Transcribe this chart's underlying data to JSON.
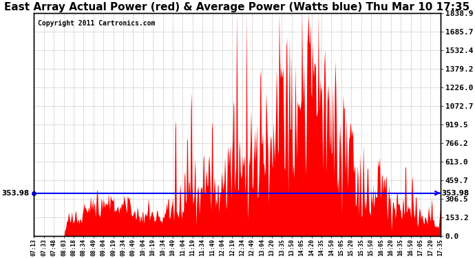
{
  "title": "East Array Actual Power (red) & Average Power (Watts blue) Thu Mar 10 17:35",
  "copyright_text": "Copyright 2011 Cartronics.com",
  "avg_power": 353.98,
  "y_ticks": [
    0.0,
    153.2,
    306.5,
    459.7,
    613.0,
    766.2,
    919.5,
    1072.7,
    1226.0,
    1379.2,
    1532.4,
    1685.7,
    1838.9
  ],
  "y_max": 1838.9,
  "y_min": 0.0,
  "background_color": "#ffffff",
  "grid_color": "#aaaaaa",
  "title_fontsize": 11,
  "avg_line_color": "blue",
  "fill_color": "red",
  "x_tick_labels": [
    "07:13",
    "07:33",
    "07:48",
    "08:03",
    "08:18",
    "08:34",
    "08:49",
    "09:04",
    "09:19",
    "09:34",
    "09:49",
    "10:04",
    "10:19",
    "10:34",
    "10:49",
    "11:04",
    "11:19",
    "11:34",
    "11:49",
    "12:04",
    "12:19",
    "12:34",
    "12:49",
    "13:04",
    "13:20",
    "13:35",
    "13:50",
    "14:05",
    "14:20",
    "14:35",
    "14:50",
    "15:05",
    "15:20",
    "15:35",
    "15:50",
    "16:05",
    "16:20",
    "16:35",
    "16:50",
    "17:05",
    "17:20",
    "17:35"
  ]
}
